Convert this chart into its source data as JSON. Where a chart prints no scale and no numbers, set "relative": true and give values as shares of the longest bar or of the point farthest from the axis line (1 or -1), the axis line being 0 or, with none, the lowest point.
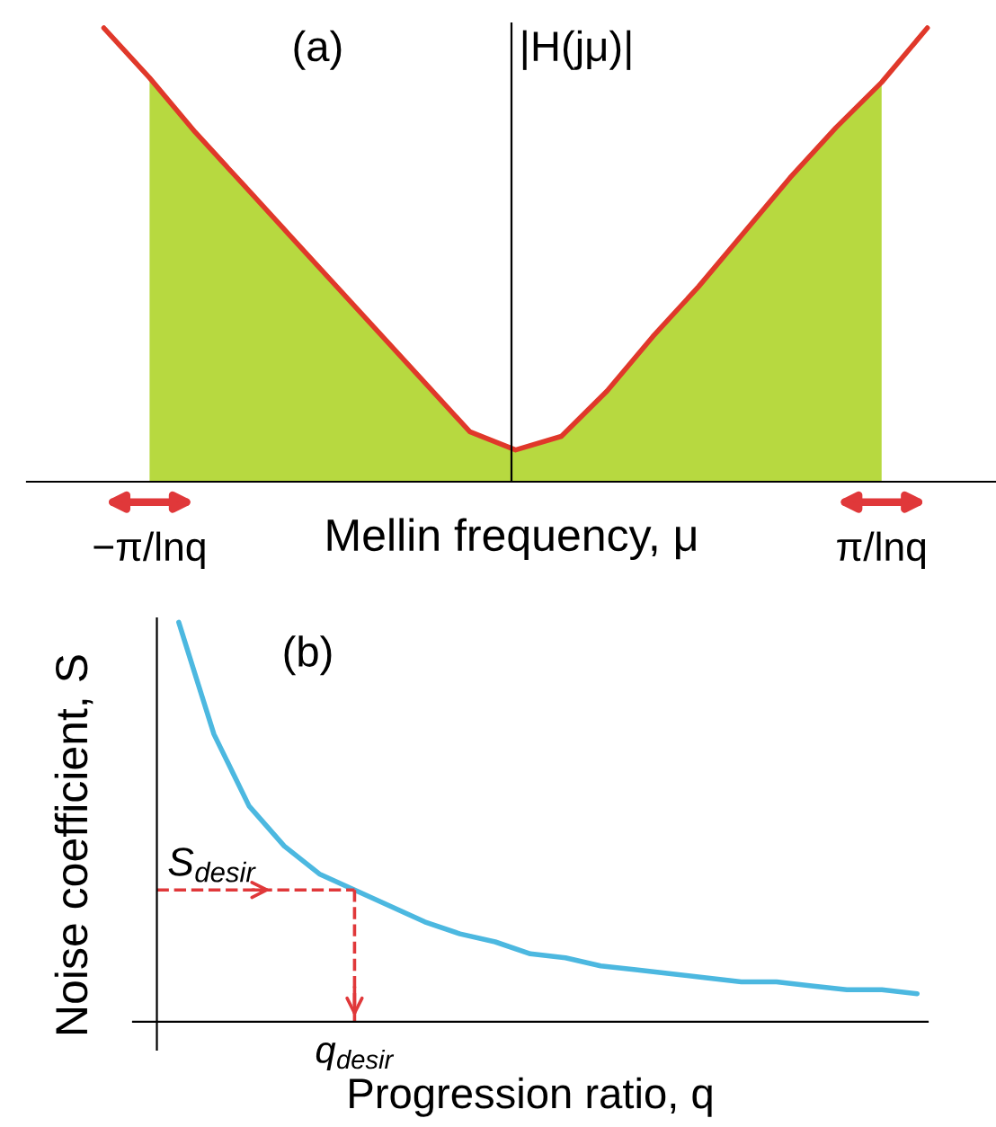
{
  "chart_data": [
    {
      "type": "line",
      "relative": true,
      "xlabel": "Mellin frequency, μ",
      "ylabel": "|H(jμ)|",
      "annotations": [
        "(a)"
      ],
      "categories": [
        null,
        "−π/lnq",
        null,
        null,
        null,
        null,
        null,
        null,
        null,
        null,
        null,
        null,
        null,
        null,
        null,
        null,
        null,
        "π/lnq",
        null
      ],
      "series": [
        {
          "type": "area",
          "color": "#b7d940",
          "values": [
            null,
            0.89,
            0.77,
            0.66,
            0.55,
            0.44,
            0.33,
            0.22,
            0.11,
            0.07,
            0.1,
            0.2,
            0.32,
            0.43,
            0.55,
            0.67,
            0.78,
            0.88,
            null
          ]
        },
        {
          "type": "line",
          "color": "#e0382a",
          "values": [
            1,
            0.89,
            0.77,
            0.66,
            0.55,
            0.44,
            0.33,
            0.22,
            0.11,
            0.07,
            0.1,
            0.2,
            0.32,
            0.43,
            0.55,
            0.67,
            0.78,
            0.88,
            1
          ]
        }
      ]
    },
    {
      "type": "line",
      "relative": true,
      "xlabel": "Progression ratio, q",
      "ylabel": "Noise coefficient, S",
      "categories": [
        null,
        null,
        null,
        null,
        null,
        null,
        null,
        null,
        null,
        null,
        null,
        null,
        null,
        null,
        null,
        null,
        null,
        null,
        null,
        null,
        null,
        null
      ],
      "annotations": [
        "(b)",
        "S$_{desir}$",
        "q$_{desir}$"
      ],
      "series": [
        {
          "color": "#4cb8e0",
          "values": [
            1,
            0.72,
            0.54,
            0.44,
            0.37,
            0.33,
            0.29,
            0.25,
            0.22,
            0.2,
            0.17,
            0.16,
            0.14,
            0.13,
            0.12,
            0.11,
            0.1,
            0.1,
            0.09,
            0.08,
            0.08,
            0.07
          ]
        }
      ]
    }
  ]
}
